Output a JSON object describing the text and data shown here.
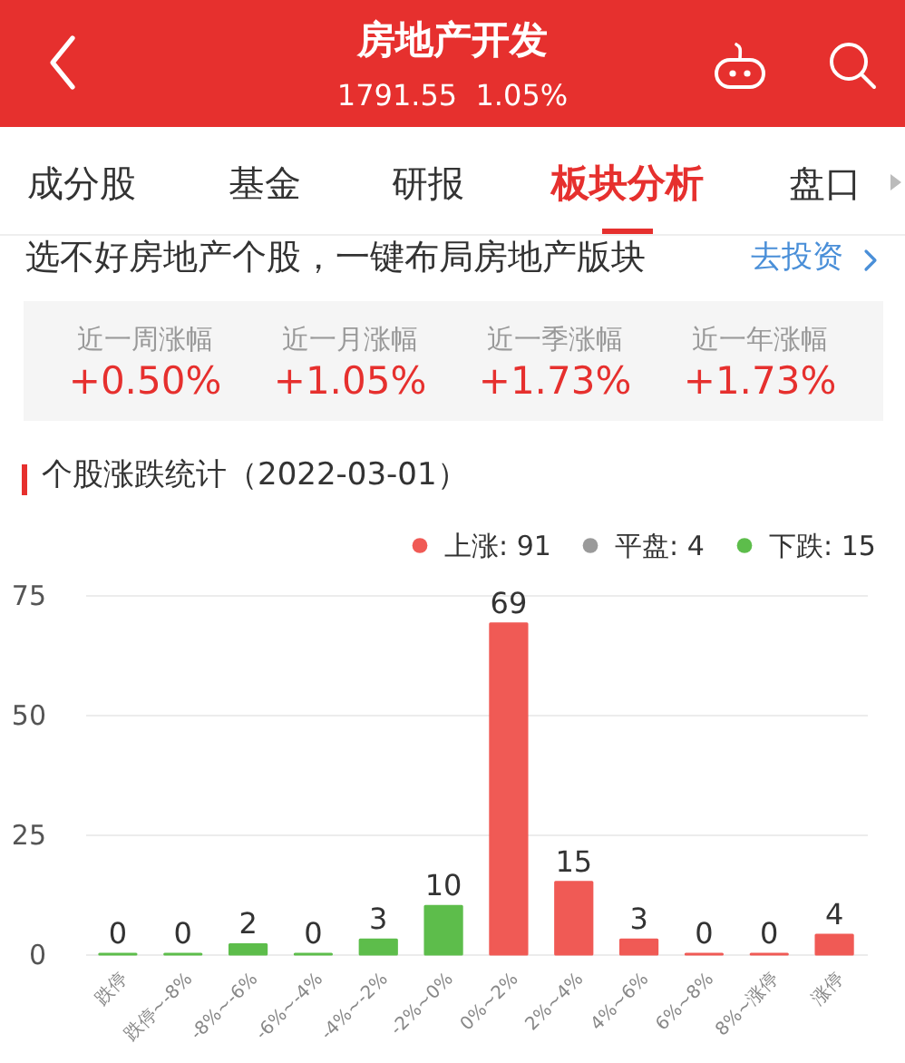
{
  "chart_data": [
    {
      "type": "other",
      "title": "房地产开发",
      "subtitle": "1791.55  1.05%",
      "annotations": [
        "成分股",
        "基金",
        "研报",
        "板块分析",
        "盘口",
        "选不好房地产个股，一键布局房地产版块",
        "去投资",
        "近一周涨幅",
        "+0.50%",
        "近一月涨幅",
        "+1.05%",
        "近一季涨幅",
        "+1.73%",
        "近一年涨幅",
        "+1.73%"
      ]
    },
    {
      "type": "bar",
      "title": "个股涨跌统计（2022-03-01）",
      "categories": [
        "跌停",
        "跌停~-8%",
        "-8%~-6%",
        "-6%~-4%",
        "-4%~-2%",
        "-2%~0%",
        "0%~2%",
        "2%~4%",
        "4%~6%",
        "6%~8%",
        "8%~涨停",
        "涨停"
      ],
      "series": [
        {
          "name": "上涨: 91",
          "color": "#f05a55",
          "values": [
            null,
            null,
            null,
            null,
            null,
            null,
            69,
            15,
            3,
            0,
            0,
            4
          ]
        },
        {
          "name": "平盘: 4",
          "color": "#9a9a9a",
          "values": [
            null,
            null,
            null,
            null,
            null,
            null,
            null,
            null,
            null,
            null,
            null,
            null
          ]
        },
        {
          "name": "下跌: 15",
          "color": "#5dbd4b",
          "values": [
            0,
            0,
            2,
            0,
            3,
            10,
            null,
            null,
            null,
            null,
            null,
            null
          ]
        }
      ],
      "ylim": [
        0,
        75
      ],
      "yticks": [
        0,
        25,
        50,
        75
      ],
      "grid": "y",
      "legend": "top right",
      "data_labels": true
    }
  ]
}
